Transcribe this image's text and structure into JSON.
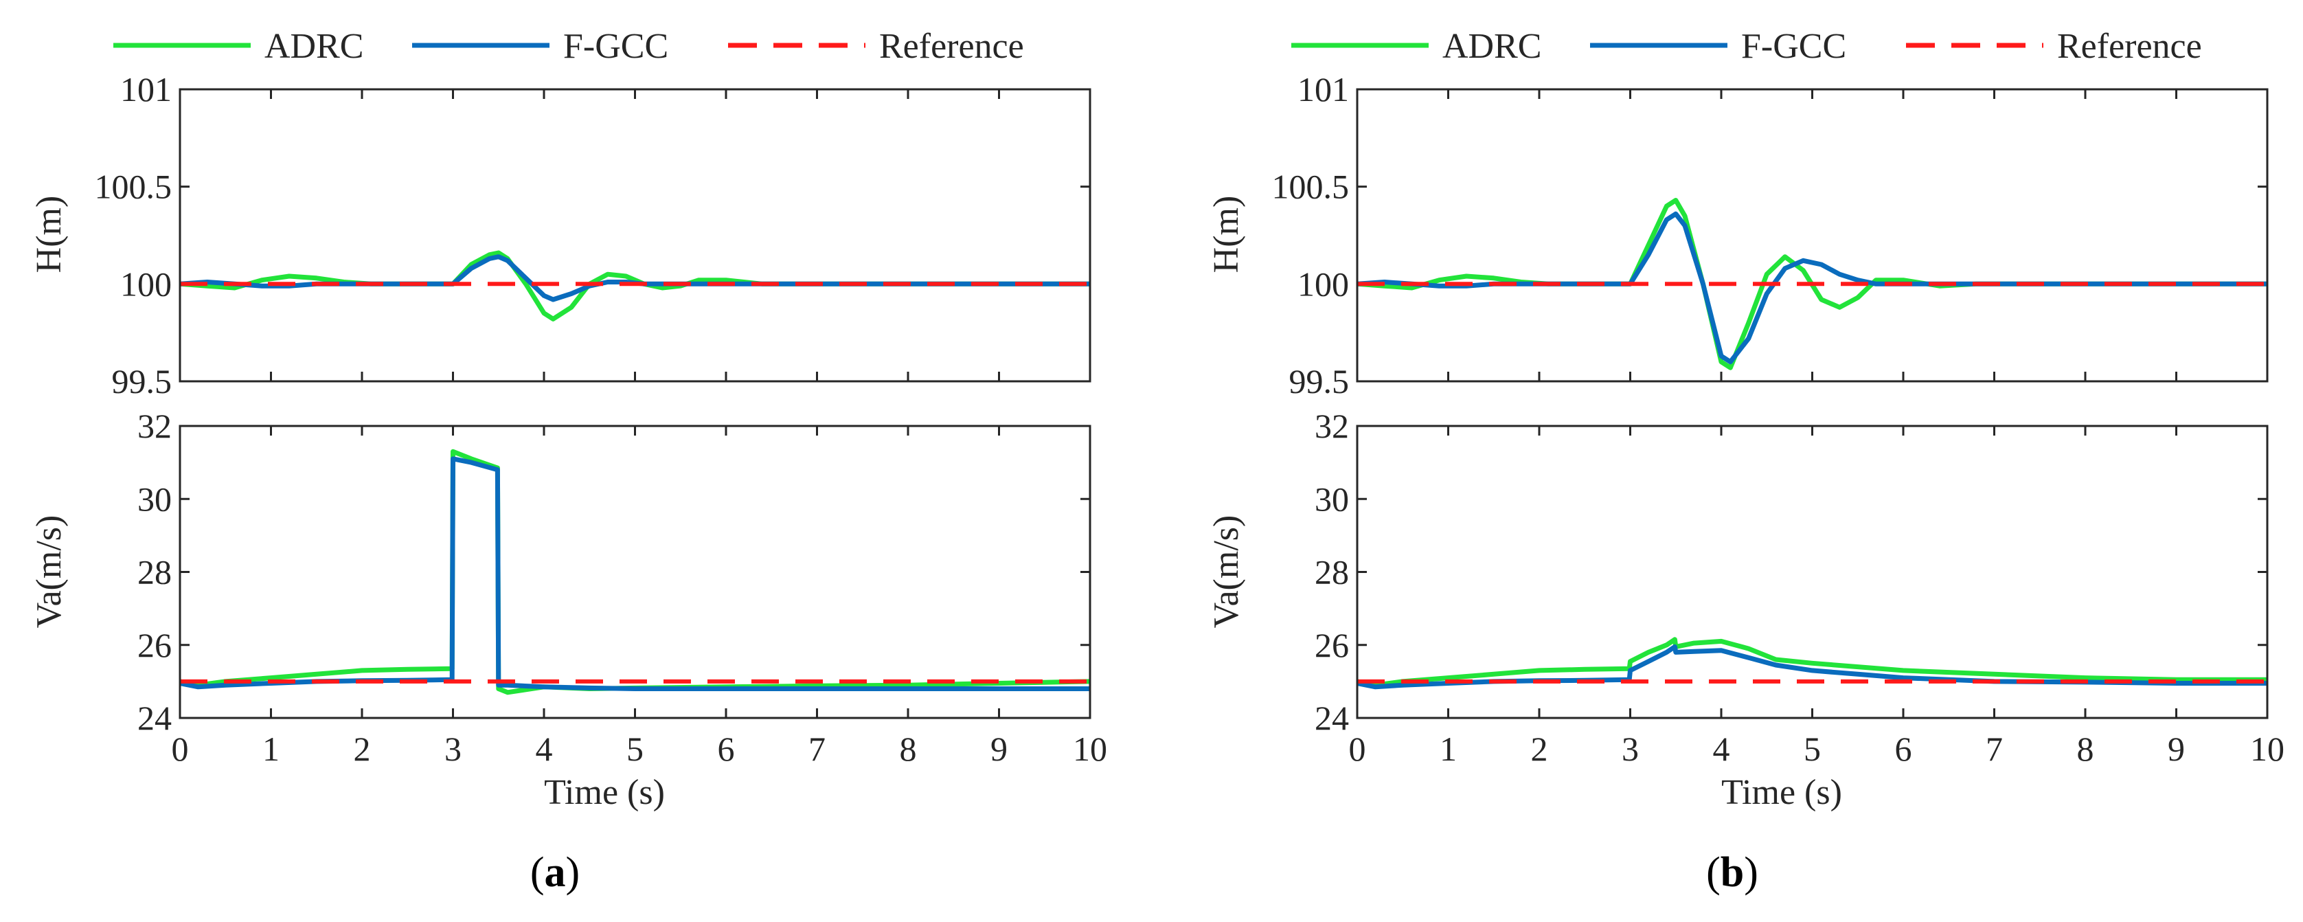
{
  "colors": {
    "adrc": "#22e33a",
    "fgcc": "#0a6cbd",
    "reference": "#ff1a1a"
  },
  "chart_data": [
    {
      "type": "line",
      "panel_label": "(a)",
      "legend": {
        "position": "top",
        "entries": [
          "ADRC",
          "F-GCC",
          "Reference"
        ]
      },
      "xlabel": "Time (s)",
      "xlim": [
        0,
        10
      ],
      "xticks": [
        0,
        1,
        2,
        3,
        4,
        5,
        6,
        7,
        8,
        9,
        10
      ],
      "subplots": [
        {
          "ylabel": "H(m)",
          "ylim": [
            99.5,
            101
          ],
          "yticks": [
            "99.5",
            "100",
            "100.5",
            "101"
          ],
          "x": [
            0,
            0.3,
            0.6,
            0.9,
            1.2,
            1.5,
            1.8,
            2.1,
            2.4,
            2.7,
            3.0,
            3.2,
            3.4,
            3.5,
            3.6,
            3.8,
            4.0,
            4.1,
            4.3,
            4.5,
            4.7,
            4.9,
            5.1,
            5.3,
            5.5,
            5.7,
            6.0,
            6.4,
            6.8,
            7.2,
            8,
            9,
            10
          ],
          "series": [
            {
              "name": "ADRC",
              "values": [
                100,
                99.99,
                99.98,
                100.02,
                100.04,
                100.03,
                100.01,
                100.0,
                100.0,
                100.0,
                100.0,
                100.1,
                100.15,
                100.16,
                100.13,
                100.0,
                99.85,
                99.82,
                99.88,
                100.0,
                100.05,
                100.04,
                100.0,
                99.98,
                99.99,
                100.02,
                100.02,
                100.0,
                100.0,
                100.0,
                100.0,
                100.0,
                100.0
              ]
            },
            {
              "name": "F-GCC",
              "values": [
                100,
                100.01,
                100.0,
                99.99,
                99.99,
                100.0,
                100.0,
                100.0,
                100.0,
                100.0,
                100.0,
                100.08,
                100.13,
                100.14,
                100.12,
                100.03,
                99.94,
                99.92,
                99.95,
                99.99,
                100.01,
                100.01,
                100.0,
                100.0,
                100.0,
                100.0,
                100.0,
                100.0,
                100.0,
                100.0,
                100.0,
                100.0,
                100.0
              ]
            },
            {
              "name": "Reference",
              "values": [
                100,
                100,
                100,
                100,
                100,
                100,
                100,
                100,
                100,
                100,
                100,
                100,
                100,
                100,
                100,
                100,
                100,
                100,
                100,
                100,
                100,
                100,
                100,
                100,
                100,
                100,
                100,
                100,
                100,
                100,
                100,
                100,
                100
              ]
            }
          ]
        },
        {
          "ylabel": "Va(m/s)",
          "ylim": [
            24,
            32
          ],
          "yticks": [
            "24",
            "26",
            "28",
            "30",
            "32"
          ],
          "series": [
            {
              "name": "ADRC",
              "x": [
                0,
                0.2,
                0.5,
                1.0,
                1.5,
                2.0,
                2.5,
                2.99,
                3.0,
                3.2,
                3.49,
                3.5,
                3.6,
                4.0,
                4.5,
                5.0,
                6.0,
                7.0,
                8.0,
                9.0,
                10
              ],
              "values": [
                25.0,
                24.9,
                25.0,
                25.1,
                25.2,
                25.3,
                25.33,
                25.35,
                31.3,
                31.1,
                30.85,
                24.8,
                24.7,
                24.85,
                24.8,
                24.82,
                24.85,
                24.88,
                24.9,
                24.95,
                25.0
              ]
            },
            {
              "name": "F-GCC",
              "x": [
                0,
                0.2,
                0.5,
                1.0,
                1.5,
                2.0,
                2.5,
                2.99,
                3.0,
                3.2,
                3.49,
                3.5,
                3.6,
                4.0,
                4.5,
                5.0,
                6.0,
                7.0,
                8.0,
                9.0,
                10
              ],
              "values": [
                24.95,
                24.85,
                24.9,
                24.95,
                25.0,
                25.02,
                25.03,
                25.05,
                31.1,
                31.0,
                30.8,
                24.9,
                24.9,
                24.85,
                24.82,
                24.8,
                24.8,
                24.8,
                24.8,
                24.8,
                24.8
              ]
            },
            {
              "name": "Reference",
              "x": [
                0,
                10
              ],
              "values": [
                25,
                25
              ]
            }
          ]
        }
      ]
    },
    {
      "type": "line",
      "panel_label": "(b)",
      "legend": {
        "position": "top",
        "entries": [
          "ADRC",
          "F-GCC",
          "Reference"
        ]
      },
      "xlabel": "Time (s)",
      "xlim": [
        0,
        10
      ],
      "xticks": [
        0,
        1,
        2,
        3,
        4,
        5,
        6,
        7,
        8,
        9,
        10
      ],
      "subplots": [
        {
          "ylabel": "H(m)",
          "ylim": [
            99.5,
            101
          ],
          "yticks": [
            "99.5",
            "100",
            "100.5",
            "101"
          ],
          "x": [
            0,
            0.3,
            0.6,
            0.9,
            1.2,
            1.5,
            1.8,
            2.1,
            2.4,
            2.7,
            3.0,
            3.2,
            3.4,
            3.5,
            3.6,
            3.8,
            4.0,
            4.1,
            4.3,
            4.5,
            4.7,
            4.9,
            5.1,
            5.3,
            5.5,
            5.7,
            6.0,
            6.4,
            6.8,
            7.2,
            8,
            9,
            10
          ],
          "series": [
            {
              "name": "ADRC",
              "values": [
                100,
                99.99,
                99.98,
                100.02,
                100.04,
                100.03,
                100.01,
                100.0,
                100.0,
                100.0,
                100.0,
                100.2,
                100.4,
                100.43,
                100.35,
                100.0,
                99.6,
                99.57,
                99.8,
                100.05,
                100.14,
                100.07,
                99.92,
                99.88,
                99.93,
                100.02,
                100.02,
                99.99,
                100.0,
                100.0,
                100.0,
                100.0,
                100.0
              ]
            },
            {
              "name": "F-GCC",
              "values": [
                100,
                100.01,
                100.0,
                99.99,
                99.99,
                100.0,
                100.0,
                100.0,
                100.0,
                100.0,
                100.0,
                100.15,
                100.33,
                100.36,
                100.3,
                100.0,
                99.63,
                99.6,
                99.72,
                99.95,
                100.08,
                100.12,
                100.1,
                100.05,
                100.02,
                100.0,
                100.0,
                100.0,
                100.0,
                100.0,
                100.0,
                100.0,
                100.0
              ]
            },
            {
              "name": "Reference",
              "values": [
                100,
                100,
                100,
                100,
                100,
                100,
                100,
                100,
                100,
                100,
                100,
                100,
                100,
                100,
                100,
                100,
                100,
                100,
                100,
                100,
                100,
                100,
                100,
                100,
                100,
                100,
                100,
                100,
                100,
                100,
                100,
                100,
                100
              ]
            }
          ]
        },
        {
          "ylabel": "Va(m/s)",
          "ylim": [
            24,
            32
          ],
          "yticks": [
            "24",
            "26",
            "28",
            "30",
            "32"
          ],
          "series": [
            {
              "name": "ADRC",
              "x": [
                0,
                0.2,
                0.5,
                1.0,
                1.5,
                2.0,
                2.5,
                2.99,
                3.0,
                3.2,
                3.4,
                3.49,
                3.5,
                3.7,
                4.0,
                4.3,
                4.6,
                5.0,
                5.5,
                6.0,
                7.0,
                8.0,
                9.0,
                10
              ],
              "values": [
                25.0,
                24.9,
                25.0,
                25.1,
                25.2,
                25.3,
                25.33,
                25.35,
                25.55,
                25.8,
                26.0,
                26.15,
                25.95,
                26.05,
                26.1,
                25.9,
                25.6,
                25.5,
                25.4,
                25.3,
                25.2,
                25.1,
                25.05,
                25.05
              ]
            },
            {
              "name": "F-GCC",
              "x": [
                0,
                0.2,
                0.5,
                1.0,
                1.5,
                2.0,
                2.5,
                2.99,
                3.0,
                3.2,
                3.4,
                3.49,
                3.5,
                3.7,
                4.0,
                4.3,
                4.6,
                5.0,
                5.5,
                6.0,
                7.0,
                8.0,
                9.0,
                10
              ],
              "values": [
                24.95,
                24.85,
                24.9,
                24.95,
                25.0,
                25.02,
                25.03,
                25.05,
                25.3,
                25.55,
                25.8,
                25.95,
                25.8,
                25.82,
                25.85,
                25.65,
                25.45,
                25.3,
                25.2,
                25.1,
                25.0,
                24.98,
                24.95,
                24.95
              ]
            },
            {
              "name": "Reference",
              "x": [
                0,
                10
              ],
              "values": [
                25,
                25
              ]
            }
          ]
        }
      ]
    }
  ]
}
